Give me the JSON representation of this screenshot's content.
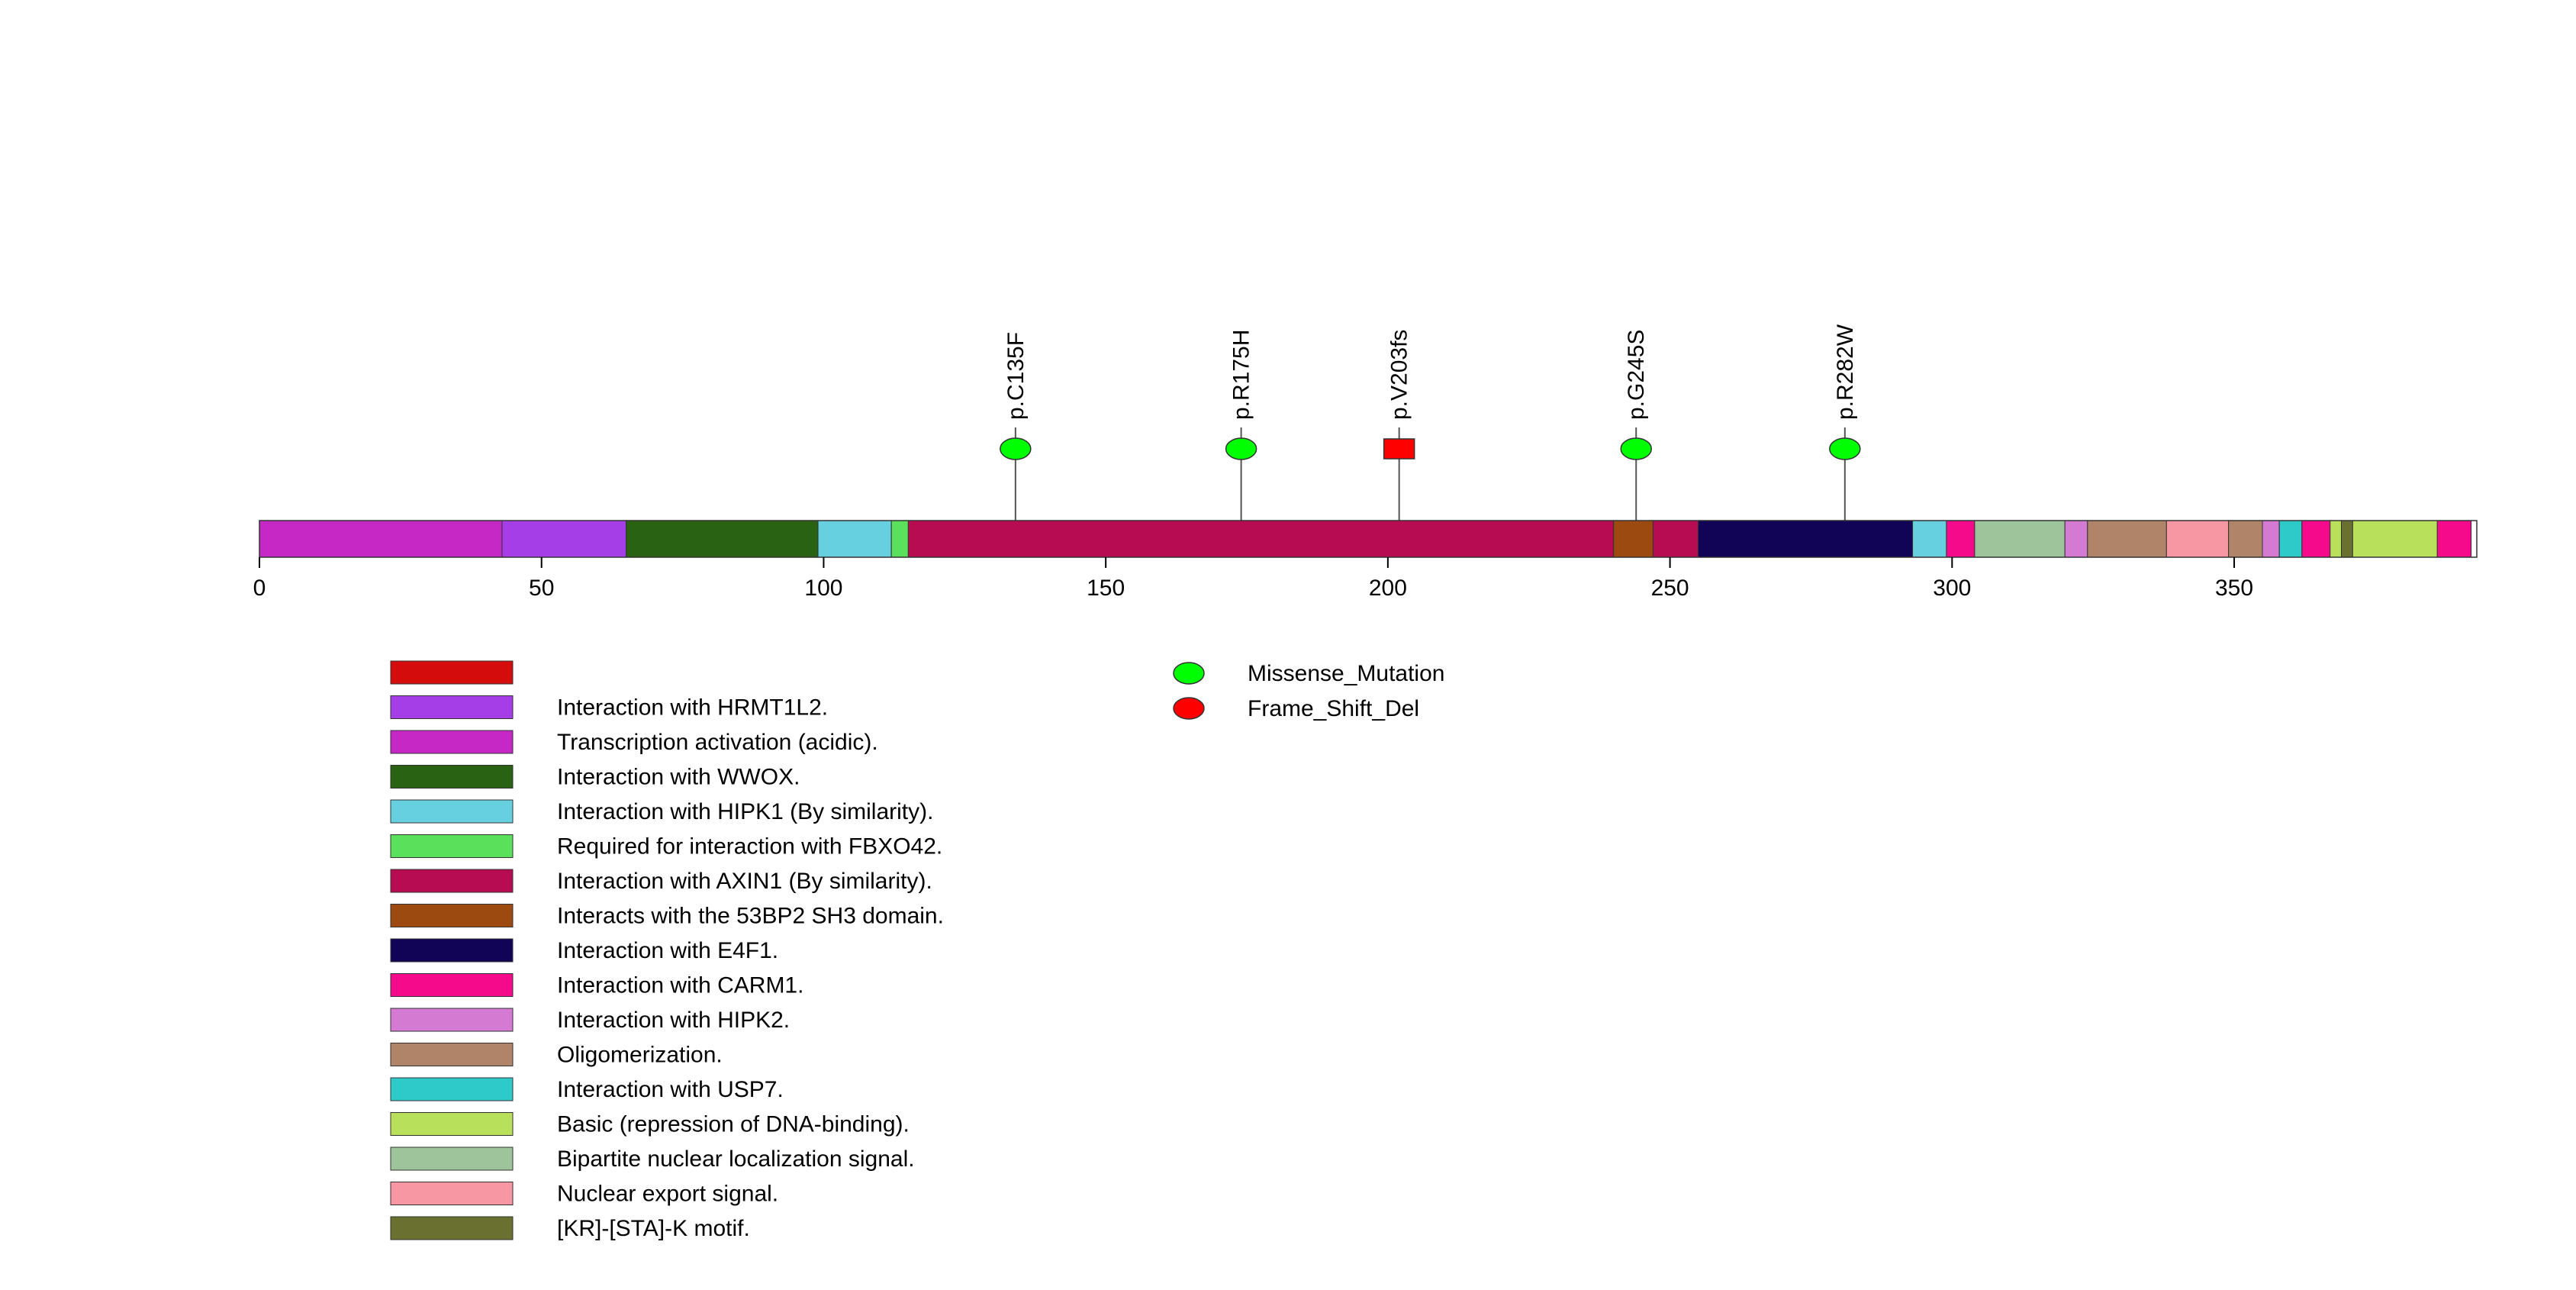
{
  "chart_data": {
    "type": "lollipop",
    "protein_length": 393,
    "axis": {
      "xlim": [
        0,
        393
      ],
      "ticks": [
        0,
        50,
        100,
        150,
        200,
        250,
        300,
        350
      ]
    },
    "domains": [
      {
        "start": 1,
        "end": 44,
        "color": "#c628c6"
      },
      {
        "start": 44,
        "end": 66,
        "color": "#a53ee6"
      },
      {
        "start": 66,
        "end": 100,
        "color": "#2a6214"
      },
      {
        "start": 100,
        "end": 113,
        "color": "#66d0e0"
      },
      {
        "start": 113,
        "end": 116,
        "color": "#5ae05a"
      },
      {
        "start": 116,
        "end": 241,
        "color": "#b80c52"
      },
      {
        "start": 241,
        "end": 248,
        "color": "#9c4a10"
      },
      {
        "start": 248,
        "end": 256,
        "color": "#b80c52"
      },
      {
        "start": 256,
        "end": 294,
        "color": "#110457"
      },
      {
        "start": 294,
        "end": 300,
        "color": "#66d0e0"
      },
      {
        "start": 300,
        "end": 305,
        "color": "#f50a8c"
      },
      {
        "start": 305,
        "end": 321,
        "color": "#9dc49a"
      },
      {
        "start": 321,
        "end": 325,
        "color": "#d57ad2"
      },
      {
        "start": 325,
        "end": 339,
        "color": "#b08468"
      },
      {
        "start": 339,
        "end": 350,
        "color": "#f797a3"
      },
      {
        "start": 350,
        "end": 356,
        "color": "#b08468"
      },
      {
        "start": 356,
        "end": 359,
        "color": "#d57ad2"
      },
      {
        "start": 359,
        "end": 363,
        "color": "#2ec9c9"
      },
      {
        "start": 363,
        "end": 368,
        "color": "#f50a8c"
      },
      {
        "start": 368,
        "end": 370,
        "color": "#b9e05a"
      },
      {
        "start": 370,
        "end": 372,
        "color": "#6a7030"
      },
      {
        "start": 372,
        "end": 387,
        "color": "#b9e05a"
      },
      {
        "start": 387,
        "end": 393,
        "color": "#f50a8c"
      }
    ],
    "mutations": [
      {
        "label": "p.C135F",
        "position": 135,
        "type": "Missense_Mutation"
      },
      {
        "label": "p.R175H",
        "position": 175,
        "type": "Missense_Mutation"
      },
      {
        "label": "p.V203fs",
        "position": 203,
        "type": "Frame_Shift_Del"
      },
      {
        "label": "p.G245S",
        "position": 245,
        "type": "Missense_Mutation"
      },
      {
        "label": "p.R282W",
        "position": 282,
        "type": "Missense_Mutation"
      }
    ],
    "domain_legend": [
      {
        "label": "",
        "color": "#d40c0c"
      },
      {
        "label": "Interaction with HRMT1L2.",
        "color": "#a53ee6"
      },
      {
        "label": "Transcription activation (acidic).",
        "color": "#c628c6"
      },
      {
        "label": "Interaction with WWOX.",
        "color": "#2a6214"
      },
      {
        "label": "Interaction with HIPK1 (By similarity).",
        "color": "#66d0e0"
      },
      {
        "label": "Required for interaction with FBXO42.",
        "color": "#5ae05a"
      },
      {
        "label": "Interaction with AXIN1 (By similarity).",
        "color": "#b80c52"
      },
      {
        "label": "Interacts with the 53BP2 SH3 domain.",
        "color": "#9c4a10"
      },
      {
        "label": "Interaction with E4F1.",
        "color": "#110457"
      },
      {
        "label": "Interaction with CARM1.",
        "color": "#f50a8c"
      },
      {
        "label": "Interaction with HIPK2.",
        "color": "#d57ad2"
      },
      {
        "label": "Oligomerization.",
        "color": "#b08468"
      },
      {
        "label": "Interaction with USP7.",
        "color": "#2ec9c9"
      },
      {
        "label": "Basic (repression of DNA-binding).",
        "color": "#b9e05a"
      },
      {
        "label": "Bipartite nuclear localization signal.",
        "color": "#9dc49a"
      },
      {
        "label": "Nuclear export signal.",
        "color": "#f797a3"
      },
      {
        "label": "[KR]-[STA]-K motif.",
        "color": "#6a7030"
      }
    ],
    "mutation_legend": [
      {
        "label": "Missense_Mutation",
        "color": "#00ff00"
      },
      {
        "label": "Frame_Shift_Del",
        "color": "#ff0000"
      }
    ]
  }
}
